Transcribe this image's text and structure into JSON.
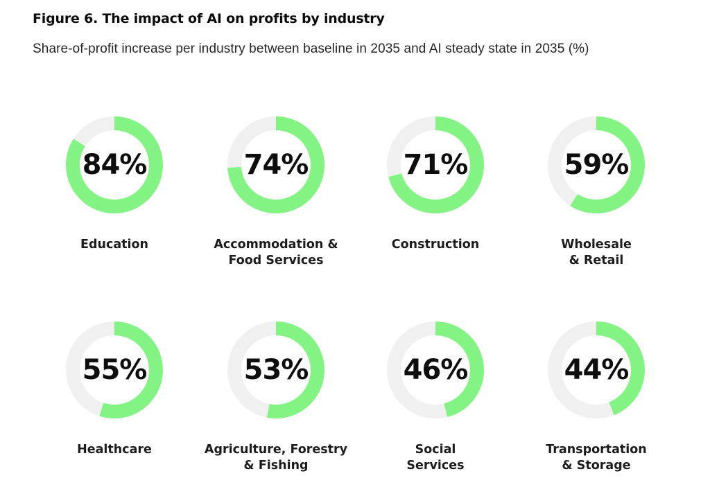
{
  "header": {
    "title": "Figure 6. The impact of AI on profits by industry",
    "subtitle": "Share-of-profit increase per industry between baseline in 2035 and AI steady state in 2035 (%)"
  },
  "colors": {
    "accent": "#83f483",
    "track": "#f0f0f0",
    "text": "#111111"
  },
  "chart_data": {
    "type": "donut",
    "title": "Figure 6. The impact of AI on profits by industry",
    "subtitle": "Share-of-profit increase per industry between baseline in 2035 and AI steady state in 2035 (%)",
    "unit": "%",
    "items": [
      {
        "label": "Education",
        "value": 84,
        "value_label": "84%"
      },
      {
        "label": "Accommodation &\nFood Services",
        "value": 74,
        "value_label": "74%"
      },
      {
        "label": "Construction",
        "value": 71,
        "value_label": "71%"
      },
      {
        "label": "Wholesale\n& Retail",
        "value": 59,
        "value_label": "59%"
      },
      {
        "label": "Healthcare",
        "value": 55,
        "value_label": "55%"
      },
      {
        "label": "Agriculture, Forestry\n& Fishing",
        "value": 53,
        "value_label": "53%"
      },
      {
        "label": "Social\nServices",
        "value": 46,
        "value_label": "46%"
      },
      {
        "label": "Transportation\n& Storage",
        "value": 44,
        "value_label": "44%"
      }
    ]
  }
}
